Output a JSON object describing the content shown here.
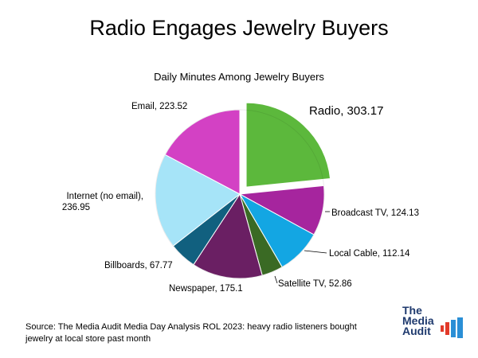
{
  "title": "Radio Engages Jewelry Buyers",
  "subtitle": "Daily Minutes Among Jewelry Buyers",
  "source": "Source: The Media Audit Media Day Analysis ROL 2023: heavy radio listeners bought jewelry at local store past month",
  "logo": {
    "line1": "The",
    "line2": "Media",
    "line3": "Audit"
  },
  "chart_data": {
    "type": "pie",
    "title": "Radio Engages Jewelry Buyers",
    "subtitle": "Daily Minutes Among Jewelry Buyers",
    "slices": [
      {
        "name": "Radio",
        "value": 303.17,
        "label": "Radio, 303.17",
        "color": "#5cb83c",
        "exploded": true
      },
      {
        "name": "Broadcast TV",
        "value": 124.13,
        "label": "Broadcast TV, 124.13",
        "color": "#a6259e"
      },
      {
        "name": "Local Cable",
        "value": 112.14,
        "label": "Local Cable, 112.14",
        "color": "#13a6e3"
      },
      {
        "name": "Satellite TV",
        "value": 52.86,
        "label": "Satellite TV, 52.86",
        "color": "#3a6a24"
      },
      {
        "name": "Newspaper",
        "value": 175.1,
        "label": "Newspaper, 175.1",
        "color": "#6a1f63"
      },
      {
        "name": "Billboards",
        "value": 67.77,
        "label": "Billboards, 67.77",
        "color": "#11607f"
      },
      {
        "name": "Internet (no email)",
        "value": 236.95,
        "label": "Internet (no email), 236.95",
        "color": "#a6e4f8"
      },
      {
        "name": "Email",
        "value": 223.52,
        "label": "Email, 223.52",
        "color": "#d341c4"
      }
    ]
  }
}
